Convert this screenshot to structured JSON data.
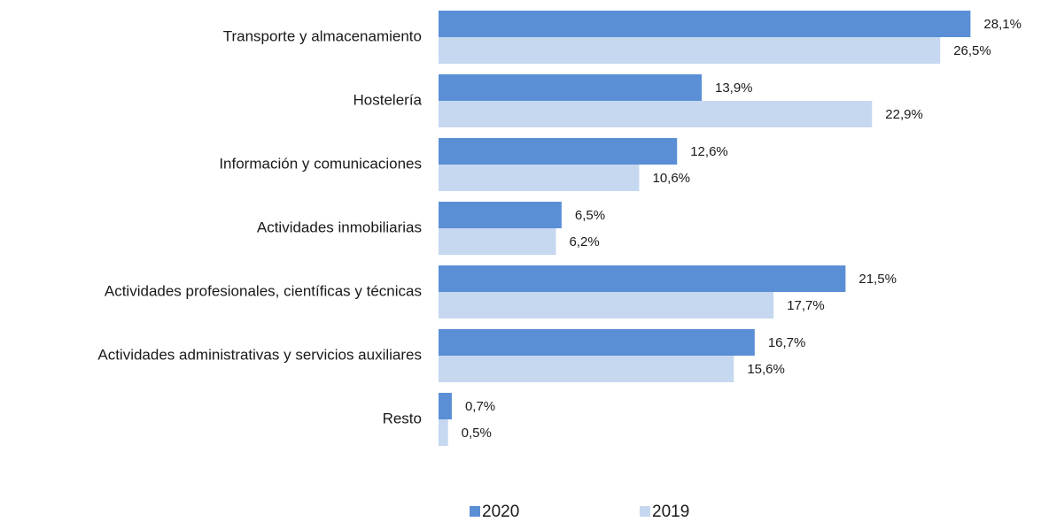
{
  "chart_data": {
    "type": "bar",
    "orientation": "horizontal",
    "categories": [
      "Transporte y almacenamiento",
      "Hostelería",
      "Información y comunicaciones",
      "Actividades inmobiliarias",
      "Actividades profesionales, científicas y técnicas",
      "Actividades administrativas y servicios auxiliares",
      "Resto"
    ],
    "series": [
      {
        "name": "2020",
        "color": "#5a8fd5",
        "values": [
          28.1,
          13.9,
          12.6,
          6.5,
          21.5,
          16.7,
          0.7
        ],
        "value_labels": [
          "28,1%",
          "13,9%",
          "12,6%",
          "6,5%",
          "21,5%",
          "16,7%",
          "0,7%"
        ]
      },
      {
        "name": "2019",
        "color": "#c6d8f0",
        "values": [
          26.5,
          22.9,
          10.6,
          6.2,
          17.7,
          15.6,
          0.5
        ],
        "value_labels": [
          "26,5%",
          "22,9%",
          "10,6%",
          "6,2%",
          "17,7%",
          "15,6%",
          "0,5%"
        ]
      }
    ],
    "xlim": [
      0,
      30
    ],
    "legend": "bottom"
  }
}
